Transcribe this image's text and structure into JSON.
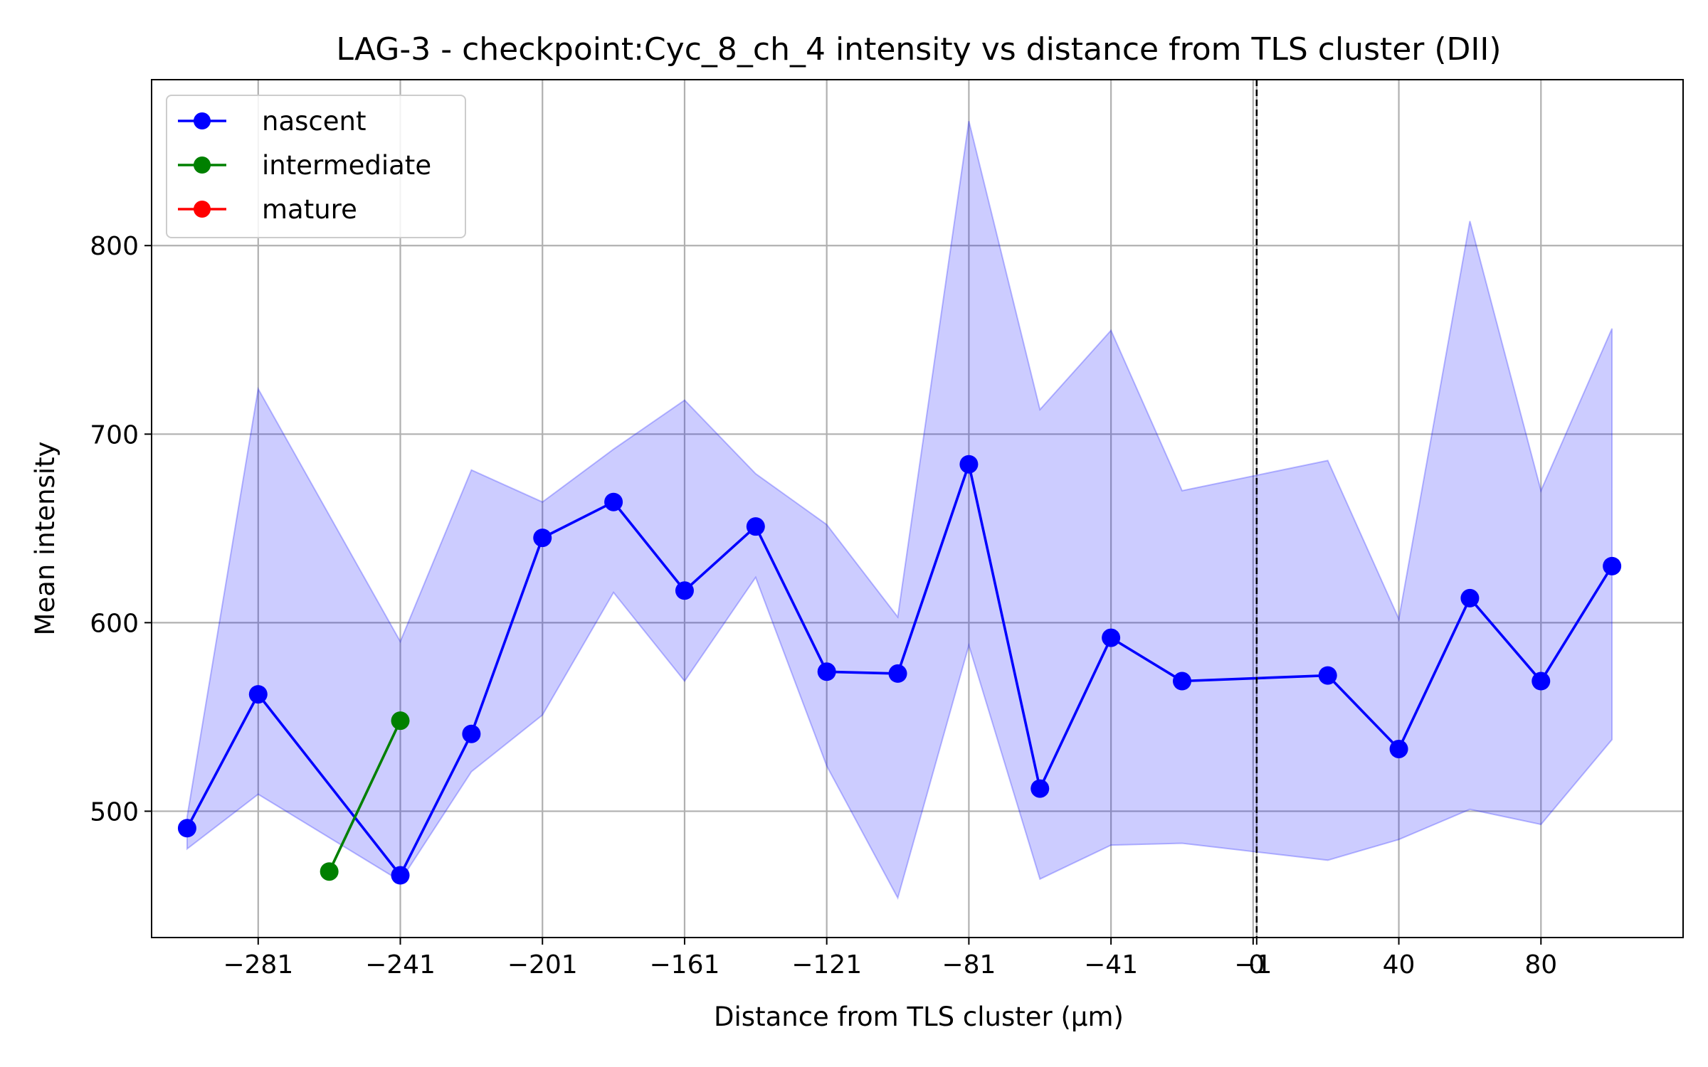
{
  "chart_data": {
    "type": "line",
    "title": "LAG-3 - checkpoint:Cyc_8_ch_4 intensity vs distance from TLS cluster (DII)",
    "xlabel": "Distance from TLS cluster (μm)",
    "ylabel": "Mean intensity",
    "xlim": [
      -311,
      120
    ],
    "ylim": [
      433,
      888
    ],
    "x_ticks": [
      -281,
      -241,
      -201,
      -161,
      -121,
      -81,
      -41,
      -1,
      0,
      40,
      80
    ],
    "x_tick_labels": [
      "−281",
      "−241",
      "−201",
      "−161",
      "−121",
      "−81",
      "−41",
      "−1",
      "0",
      "40",
      "80"
    ],
    "y_ticks": [
      500,
      600,
      700,
      800
    ],
    "y_tick_labels": [
      "500",
      "600",
      "700",
      "800"
    ],
    "grid": true,
    "reference_line": {
      "x": 0,
      "style": "dashed",
      "color": "#000000"
    },
    "legend": {
      "placement": "top-left",
      "entries": [
        "nascent",
        "intermediate",
        "mature"
      ]
    },
    "series": [
      {
        "name": "nascent",
        "color": "#0000ff",
        "x": [
          -301,
          -281,
          -241,
          -221,
          -201,
          -181,
          -161,
          -141,
          -121,
          -101,
          -81,
          -61,
          -41,
          -21,
          20,
          40,
          60,
          80,
          100
        ],
        "values": [
          491,
          562,
          466,
          541,
          645,
          664,
          617,
          651,
          574,
          573,
          684,
          512,
          592,
          569,
          572,
          533,
          613,
          569,
          630
        ],
        "band_upper": [
          497,
          724,
          590,
          681,
          664,
          692,
          718,
          679,
          652,
          603,
          866,
          713,
          755,
          670,
          686,
          602,
          813,
          670,
          756
        ],
        "band_lower": [
          480,
          509,
          463,
          521,
          551,
          616,
          569,
          624,
          524,
          454,
          588,
          464,
          482,
          483,
          474,
          485,
          501,
          493,
          538
        ],
        "band_color": "#0000ff"
      },
      {
        "name": "intermediate",
        "color": "#008000",
        "x": [
          -261,
          -241
        ],
        "values": [
          468,
          548
        ]
      },
      {
        "name": "mature",
        "color": "#ff0000",
        "x": [],
        "values": []
      }
    ]
  }
}
